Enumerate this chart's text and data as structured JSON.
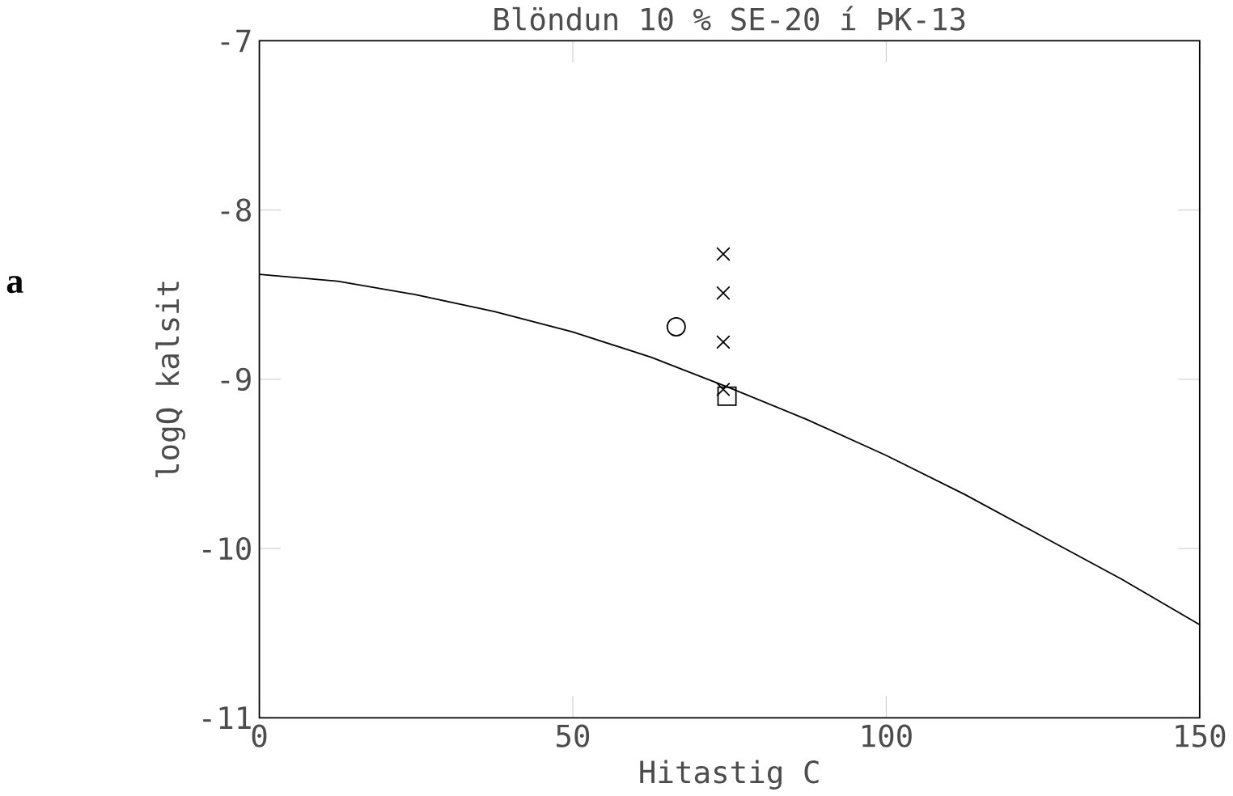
{
  "chart_data": {
    "type": "line",
    "title": "Blöndun 10 % SE-20 í ÞK-13",
    "xlabel": "Hitastig  C",
    "ylabel": "logQ kalsit",
    "xlim": [
      0,
      150
    ],
    "ylim": [
      -11,
      -7
    ],
    "xticks": [
      0,
      50,
      100,
      150
    ],
    "yticks": [
      -11,
      -10,
      -9,
      -8,
      -7
    ],
    "annotations": [
      "a"
    ],
    "series": [
      {
        "color": "#000000",
        "marker": "none",
        "x": [
          0,
          12.5,
          25,
          37.5,
          50,
          62.5,
          75,
          87.5,
          100,
          112.5,
          125,
          137.5,
          150
        ],
        "values": [
          -8.38,
          -8.42,
          -8.5,
          -8.6,
          -8.72,
          -8.87,
          -9.05,
          -9.24,
          -9.45,
          -9.68,
          -9.93,
          -10.18,
          -10.45
        ]
      },
      {
        "type": "scatter",
        "color": "#000000",
        "marker": "cross",
        "x": [
          74,
          74,
          74,
          74
        ],
        "values": [
          -8.26,
          -8.49,
          -8.78,
          -9.06
        ]
      },
      {
        "type": "scatter",
        "color": "#000000",
        "marker": "circle",
        "x": [
          66.5
        ],
        "values": [
          -8.69
        ]
      },
      {
        "type": "scatter",
        "color": "#000000",
        "marker": "square",
        "x": [
          74.6
        ],
        "values": [
          -9.1
        ]
      }
    ]
  }
}
